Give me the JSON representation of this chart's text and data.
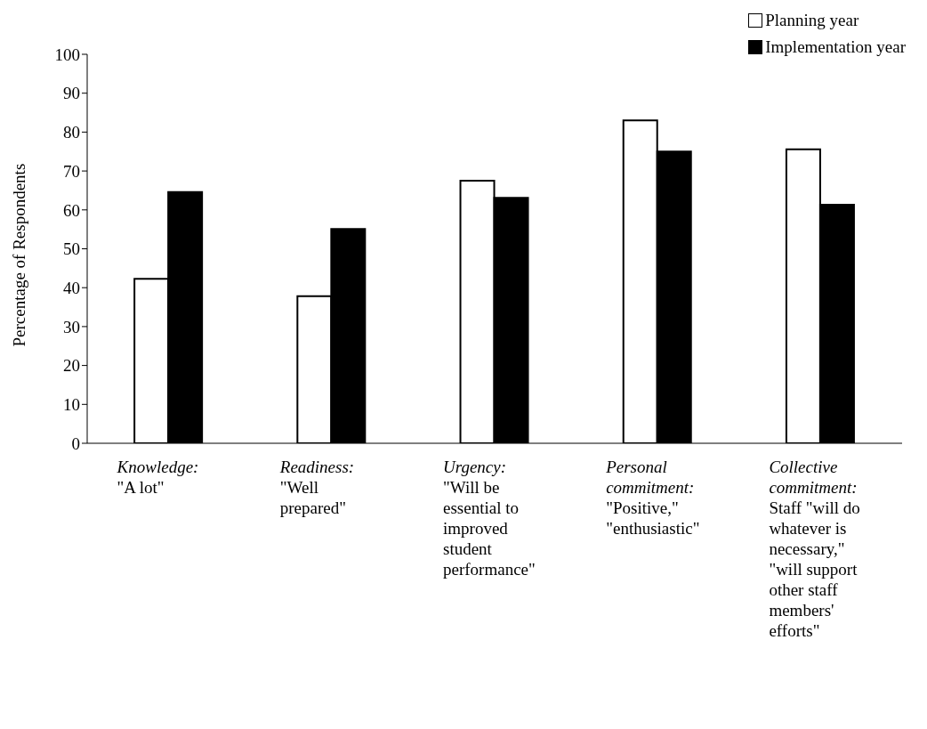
{
  "chart_data": {
    "type": "bar",
    "ylabel": "Percentage of Respondents",
    "categories": [
      "Knowledge: \"A lot\"",
      "Readiness: \"Well prepared\"",
      "Urgency: \"Will be essential to improved student performance\"",
      "Personal commitment: \"Positive,\" \"enthusiastic\"",
      "Collective commitment: Staff \"will do whatever is necessary,\" \"will support other staff members' efforts\""
    ],
    "series": [
      {
        "name": "Planning year",
        "color": "#ffffff",
        "values": [
          42.3,
          37.8,
          67.5,
          83,
          75.6
        ]
      },
      {
        "name": "Implementation year",
        "color": "#000000",
        "values": [
          64.6,
          55.1,
          63.1,
          75,
          61.3
        ]
      }
    ],
    "ylim": [
      0,
      100
    ],
    "yticks": [
      0,
      10,
      20,
      30,
      40,
      50,
      60,
      70,
      80,
      90,
      100
    ],
    "grid": false,
    "legend": "top right"
  }
}
